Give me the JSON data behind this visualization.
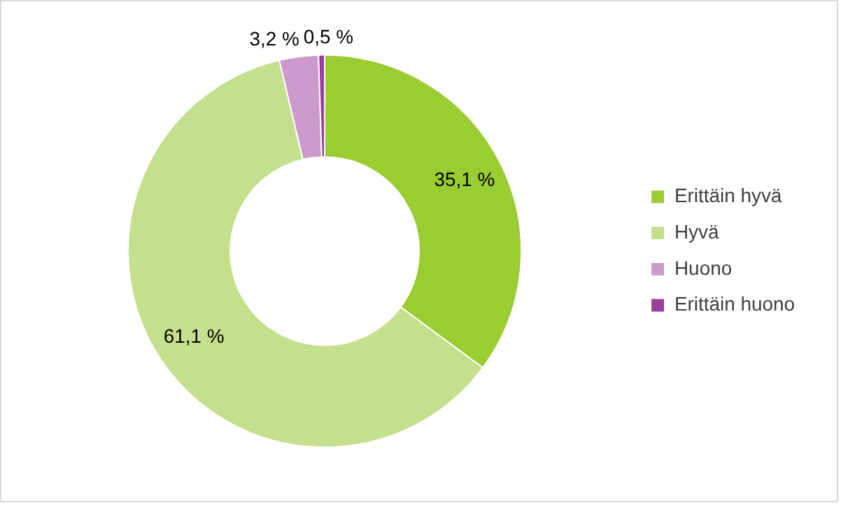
{
  "chart_data": {
    "type": "donut",
    "categories": [
      "Erittäin hyvä",
      "Hyvä",
      "Huono",
      "Erittäin huono"
    ],
    "values": [
      35.1,
      61.1,
      3.2,
      0.5
    ],
    "value_labels": [
      "35,1 %",
      "61,1 %",
      "3,2 %",
      "0,5 %"
    ],
    "colors": [
      "#9acd32",
      "#c4e08c",
      "#cc99cc",
      "#9b3d9b"
    ],
    "legend": "right"
  }
}
